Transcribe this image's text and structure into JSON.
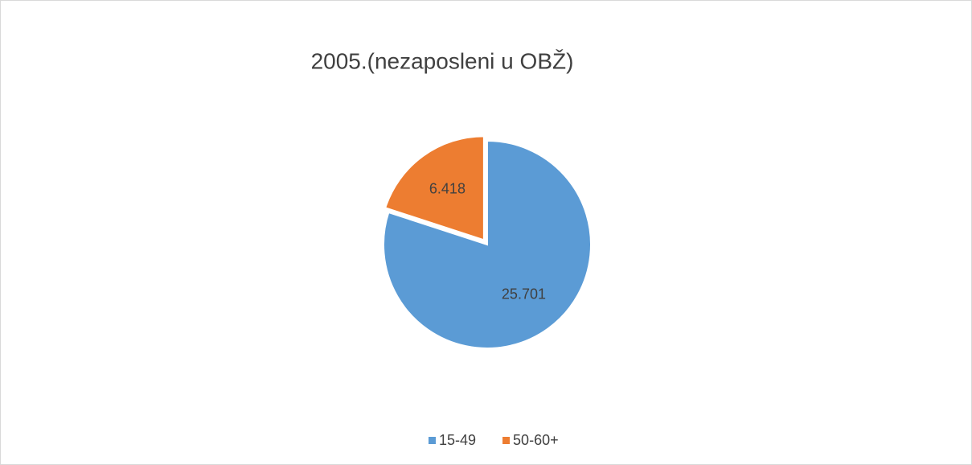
{
  "chart_data": {
    "type": "pie",
    "title": "2005.(nezaposleni u OBŽ)",
    "categories": [
      "15-49",
      "50-60+"
    ],
    "values": [
      25701,
      6418
    ],
    "value_labels": [
      "25.701",
      "6.418"
    ],
    "colors": [
      "#5b9bd5",
      "#ed7d31"
    ],
    "legend": "bottom"
  }
}
